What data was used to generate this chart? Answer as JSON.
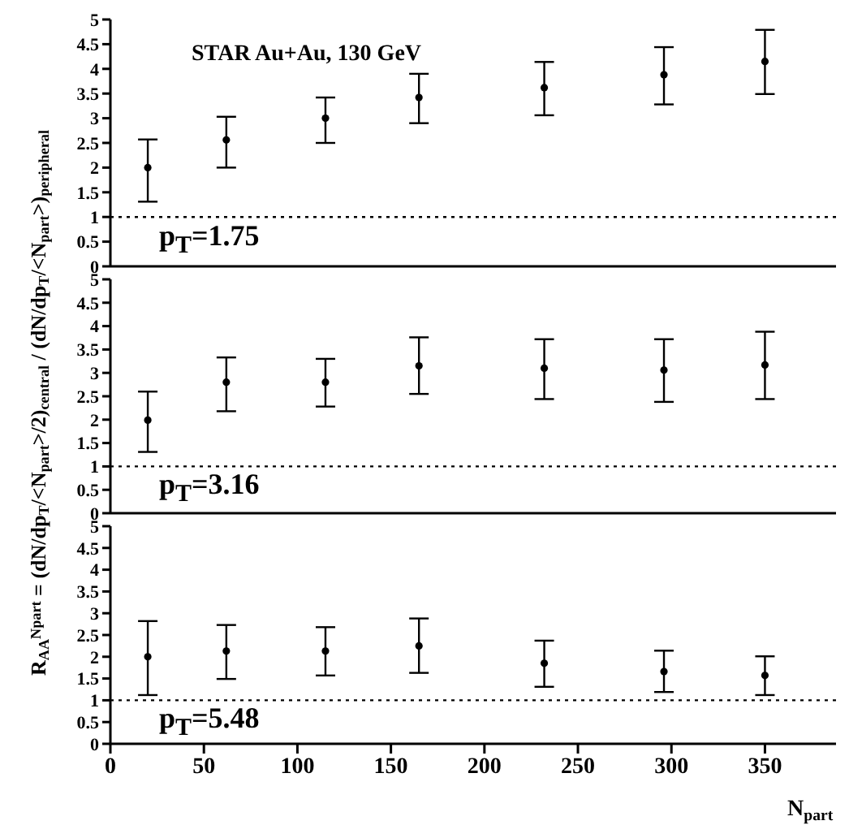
{
  "chart_data": [
    {
      "type": "scatter",
      "x": [
        20,
        62,
        115,
        165,
        232,
        296,
        350
      ],
      "values": [
        2.0,
        2.56,
        3.0,
        3.42,
        3.62,
        3.88,
        4.15
      ],
      "color": "#000000",
      "errors": [
        [
          1.31,
          2.57
        ],
        [
          2.0,
          3.03
        ],
        [
          2.5,
          3.42
        ],
        [
          2.9,
          3.9
        ],
        [
          3.06,
          4.14
        ],
        [
          3.28,
          4.44
        ],
        [
          3.49,
          4.79
        ]
      ],
      "xlim": [
        0,
        388
      ],
      "xticks": [
        0,
        50,
        100,
        150,
        200,
        250,
        300,
        350
      ],
      "ylim": [
        0,
        5
      ],
      "yticks": [
        0,
        0.5,
        1,
        1.5,
        2,
        2.5,
        3,
        3.5,
        4,
        4.5,
        5
      ],
      "tick_labels": "y",
      "marker": "circle",
      "ref_lines": [
        {
          "axis": "y",
          "value": 1,
          "line_style": "dotted",
          "color": "#000000"
        }
      ],
      "annotations": [
        {
          "text": "STAR Au+Au, 130 GeV"
        },
        {
          "text": "p$_{T}$=1.75"
        }
      ]
    },
    {
      "type": "scatter",
      "x": [
        20,
        62,
        115,
        165,
        232,
        296,
        350
      ],
      "values": [
        1.99,
        2.8,
        2.8,
        3.15,
        3.1,
        3.06,
        3.17
      ],
      "color": "#000000",
      "errors": [
        [
          1.31,
          2.6
        ],
        [
          2.18,
          3.33
        ],
        [
          2.28,
          3.3
        ],
        [
          2.55,
          3.76
        ],
        [
          2.44,
          3.72
        ],
        [
          2.38,
          3.72
        ],
        [
          2.44,
          3.88
        ]
      ],
      "xlim": [
        0,
        388
      ],
      "xticks": [
        0,
        50,
        100,
        150,
        200,
        250,
        300,
        350
      ],
      "ylim": [
        0,
        5
      ],
      "yticks": [
        0,
        0.5,
        1,
        1.5,
        2,
        2.5,
        3,
        3.5,
        4,
        4.5,
        5
      ],
      "tick_labels": "y",
      "marker": "circle",
      "ylabel": "R$_{AA}$$^{Npart}$ = (dN/dp$_{T}$/<N$_{part}$>/2)$_{central}$ / (dN/dp$_{T}$/<N$_{part}$>)$_{peripheral}$",
      "ref_lines": [
        {
          "axis": "y",
          "value": 1,
          "line_style": "dotted",
          "color": "#000000"
        }
      ],
      "annotations": [
        {
          "text": "p$_{T}$=3.16"
        }
      ]
    },
    {
      "type": "scatter",
      "x": [
        20,
        62,
        115,
        165,
        232,
        296,
        350
      ],
      "values": [
        2.0,
        2.13,
        2.13,
        2.25,
        1.85,
        1.66,
        1.57
      ],
      "color": "#000000",
      "errors": [
        [
          1.12,
          2.82
        ],
        [
          1.49,
          2.73
        ],
        [
          1.57,
          2.68
        ],
        [
          1.63,
          2.88
        ],
        [
          1.31,
          2.37
        ],
        [
          1.19,
          2.14
        ],
        [
          1.12,
          2.01
        ]
      ],
      "xlim": [
        0,
        388
      ],
      "xticks": [
        0,
        50,
        100,
        150,
        200,
        250,
        300,
        350
      ],
      "ylim": [
        0,
        5
      ],
      "yticks": [
        0,
        0.5,
        1,
        1.5,
        2,
        2.5,
        3,
        3.5,
        4,
        4.5,
        5
      ],
      "marker": "circle",
      "xlabel": "N$_{part}$",
      "ref_lines": [
        {
          "axis": "y",
          "value": 1,
          "line_style": "dotted",
          "color": "#000000"
        }
      ],
      "annotations": [
        {
          "text": "p$_{T}$=5.48"
        }
      ]
    }
  ]
}
